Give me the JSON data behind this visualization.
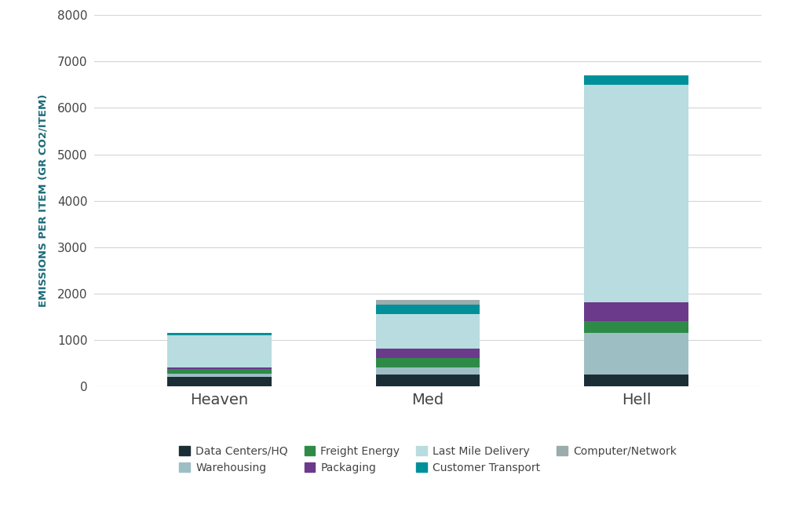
{
  "categories": [
    "Heaven",
    "Med",
    "Hell"
  ],
  "series": [
    {
      "name": "Data Centers/HQ",
      "color": "#1c2e35",
      "values": [
        200,
        250,
        250
      ]
    },
    {
      "name": "Warehousing",
      "color": "#9dbfc4",
      "values": [
        70,
        150,
        900
      ]
    },
    {
      "name": "Freight Energy",
      "color": "#2e8b47",
      "values": [
        100,
        200,
        250
      ]
    },
    {
      "name": "Packaging",
      "color": "#6b3a8a",
      "values": [
        30,
        200,
        400
      ]
    },
    {
      "name": "Last Mile Delivery",
      "color": "#b8dce0",
      "values": [
        700,
        750,
        4700
      ]
    },
    {
      "name": "Customer Transport",
      "color": "#00909a",
      "values": [
        50,
        200,
        200
      ]
    },
    {
      "name": "Computer/Network",
      "color": "#9aacac",
      "values": [
        0,
        100,
        0
      ]
    }
  ],
  "ylabel": "EMISSIONS PER ITEM (GR CO2/ITEM)",
  "ylim": [
    0,
    8000
  ],
  "yticks": [
    0,
    1000,
    2000,
    3000,
    4000,
    5000,
    6000,
    7000,
    8000
  ],
  "bar_width": 0.5,
  "background_color": "#ffffff",
  "grid_color": "#d5d5d5",
  "legend_fontsize": 10,
  "ylabel_fontsize": 9.5,
  "tick_fontsize": 11,
  "xlabel_fontsize": 14
}
